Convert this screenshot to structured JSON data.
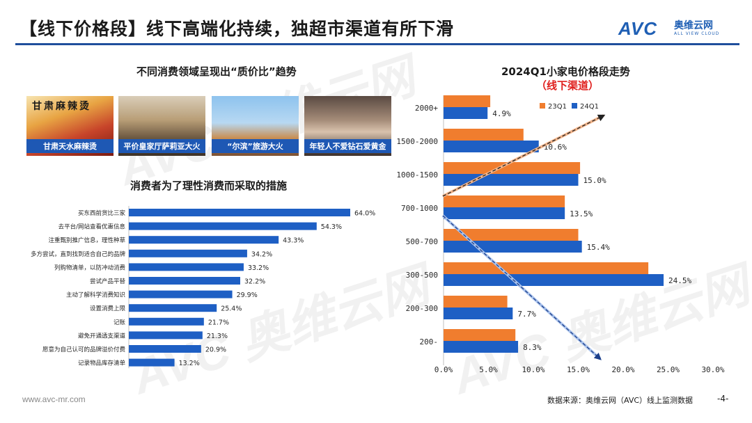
{
  "header": {
    "title": "【线下价格段】线下高端化持续，独超市渠道有所下滑",
    "logo_mark": "AVC",
    "logo_cn": "奥维云网",
    "logo_en": "ALL VIEW CLOUD"
  },
  "left_panel": {
    "title": "不同消费领域呈现出“质价比”趋势",
    "photos": [
      {
        "caption": "甘肃天水麻辣烫",
        "sign_text": "甘肃麻辣烫"
      },
      {
        "caption": "平价皇家厅萨莉亚大火"
      },
      {
        "caption": "“尔滨”旅游大火"
      },
      {
        "caption": "年轻人不爱钻石爱黄金"
      }
    ],
    "chart_title": "消费者为了理性消费而采取的措施"
  },
  "right_panel": {
    "title": "2024Q1小家电价格段走势",
    "subtitle": "（线下渠道）"
  },
  "footer": {
    "url": "www.avc-mr.com",
    "source": "数据来源：奥维云网（AVC）线上监测数据",
    "page": "-4-"
  },
  "watermark_text": "AVC 奥维云网",
  "colors": {
    "brand_blue": "#1f4e9c",
    "bar_blue": "#1e5fc4",
    "bar_orange": "#f07d2e",
    "accent_red": "#e0201e"
  },
  "chart_data": [
    {
      "type": "bar",
      "orientation": "horizontal",
      "title": "消费者为了理性消费而采取的措施",
      "categories": [
        "买东西前货比三家",
        "去平台/网站查看优惠信息",
        "注重甄别推广信息，理性种草",
        "多方尝试，直到找到适合自己的品牌",
        "列购物清单，以防冲动消费",
        "尝试产品平替",
        "主动了解科学消费知识",
        "设置消费上限",
        "记账",
        "避免开通透支渠道",
        "愿意为自己认可的品牌溢价付费",
        "记录物品库存清单"
      ],
      "values": [
        64.0,
        54.3,
        43.3,
        34.2,
        33.2,
        32.2,
        29.9,
        25.4,
        21.7,
        21.3,
        20.9,
        13.2
      ],
      "value_labels": [
        "64.0%",
        "54.3%",
        "43.3%",
        "34.2%",
        "33.2%",
        "32.2%",
        "29.9%",
        "25.4%",
        "21.7%",
        "21.3%",
        "20.9%",
        "13.2%"
      ],
      "xlim": [
        0,
        70
      ],
      "grid": false
    },
    {
      "type": "bar",
      "orientation": "horizontal",
      "title": "2024Q1小家电价格段走势",
      "categories": [
        "2000+",
        "1500-2000",
        "1000-1500",
        "700-1000",
        "500-700",
        "300-500",
        "200-300",
        "200-"
      ],
      "series": [
        {
          "name": "23Q1",
          "color": "#f07d2e",
          "values": [
            5.2,
            8.9,
            15.2,
            13.5,
            15.0,
            22.8,
            7.1,
            8.0
          ]
        },
        {
          "name": "24Q1",
          "color": "#1e5fc4",
          "values": [
            4.9,
            10.6,
            15.0,
            13.5,
            15.4,
            24.5,
            7.7,
            8.3
          ],
          "value_labels": [
            "4.9%",
            "10.6%",
            "15.0%",
            "13.5%",
            "15.4%",
            "24.5%",
            "7.7%",
            "8.3%"
          ]
        }
      ],
      "xlim": [
        0,
        30
      ],
      "xticks": [
        "0.0%",
        "5.0%",
        "10.0%",
        "15.0%",
        "20.0%",
        "25.0%",
        "30.0%"
      ],
      "legend": "top-right",
      "grid": false
    }
  ]
}
